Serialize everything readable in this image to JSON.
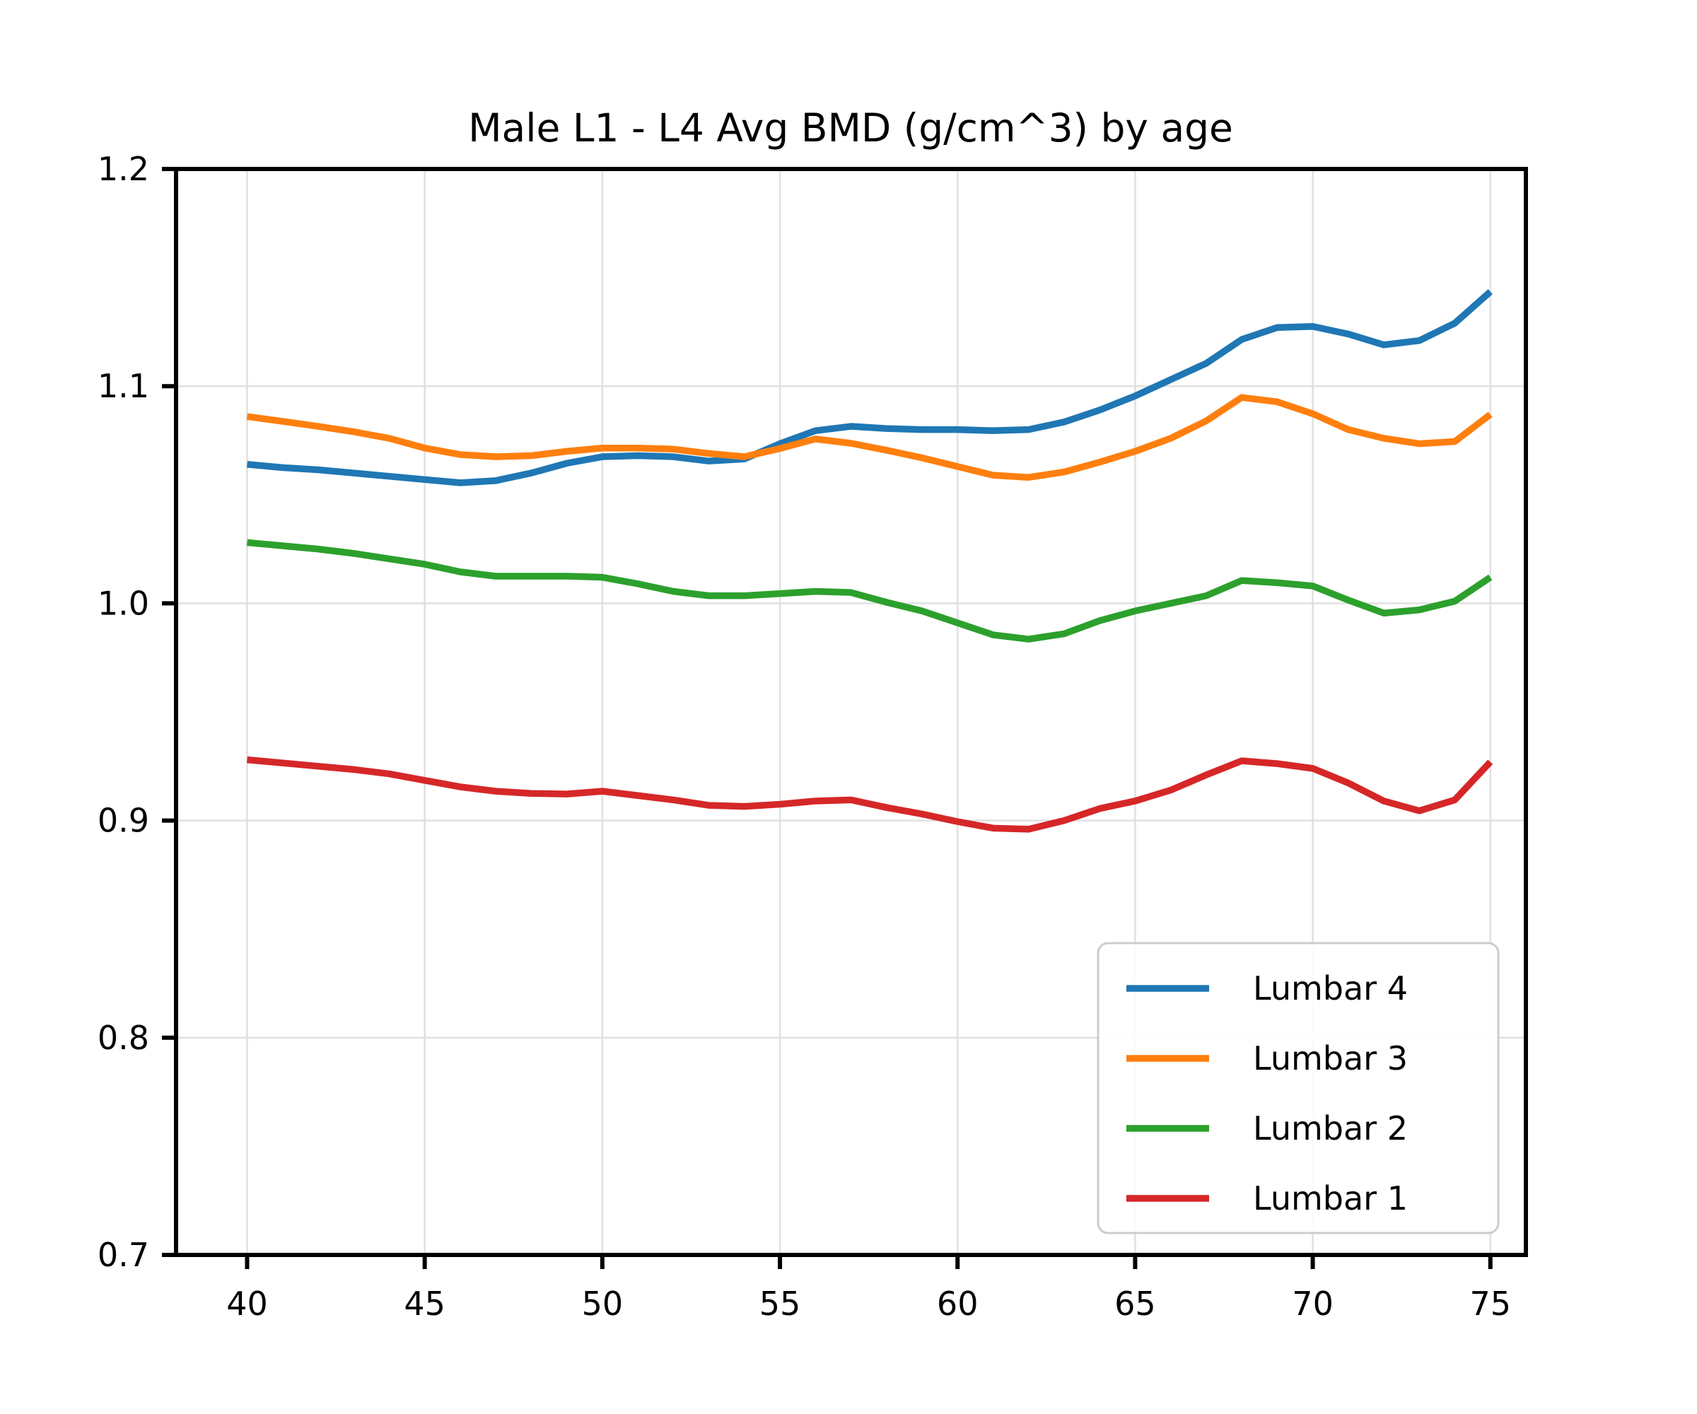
{
  "chart_data": {
    "type": "line",
    "title": "Male L1 - L4 Avg BMD (g/cm^3) by age",
    "xlabel": "",
    "ylabel": "",
    "x": [
      40,
      41,
      42,
      43,
      44,
      45,
      46,
      47,
      48,
      49,
      50,
      51,
      52,
      53,
      54,
      55,
      56,
      57,
      58,
      59,
      60,
      61,
      62,
      63,
      64,
      65,
      66,
      67,
      68,
      69,
      70,
      71,
      72,
      73,
      74,
      75
    ],
    "series": [
      {
        "name": "Lumbar 4",
        "color": "#1f77b4",
        "values": [
          1.064,
          1.0625,
          1.0615,
          1.06,
          1.0585,
          1.057,
          1.0555,
          1.0565,
          1.06,
          1.0645,
          1.0675,
          1.068,
          1.0675,
          1.0655,
          1.0665,
          1.0735,
          1.0795,
          1.0815,
          1.0805,
          1.08,
          1.08,
          1.0795,
          1.08,
          1.0835,
          1.089,
          1.0955,
          1.103,
          1.1105,
          1.1215,
          1.127,
          1.1275,
          1.124,
          1.119,
          1.121,
          1.129,
          1.1435
        ]
      },
      {
        "name": "Lumbar 3",
        "color": "#ff7f0e",
        "values": [
          1.086,
          1.0838,
          1.0815,
          1.079,
          1.076,
          1.0715,
          1.0685,
          1.0675,
          1.068,
          1.07,
          1.0715,
          1.0715,
          1.071,
          1.069,
          1.0675,
          1.0713,
          1.0757,
          1.0737,
          1.0705,
          1.067,
          1.063,
          1.059,
          1.058,
          1.0605,
          1.065,
          1.07,
          1.076,
          1.084,
          1.0948,
          1.0928,
          1.0873,
          1.08,
          1.076,
          1.0735,
          1.0745,
          1.087
        ]
      },
      {
        "name": "Lumbar 2",
        "color": "#2ca02c",
        "values": [
          1.028,
          1.0265,
          1.025,
          1.023,
          1.0205,
          1.018,
          1.0145,
          1.0125,
          1.0125,
          1.0125,
          1.012,
          1.009,
          1.0055,
          1.0035,
          1.0035,
          1.0045,
          1.0055,
          1.005,
          1.0005,
          0.9965,
          0.991,
          0.9855,
          0.9835,
          0.986,
          0.992,
          0.9965,
          1.0,
          1.0035,
          1.0105,
          1.0095,
          1.008,
          1.0015,
          0.9955,
          0.997,
          1.001,
          1.012
        ]
      },
      {
        "name": "Lumbar 1",
        "color": "#d62728",
        "values": [
          0.928,
          0.9265,
          0.925,
          0.9235,
          0.9215,
          0.9185,
          0.9155,
          0.9135,
          0.9125,
          0.9122,
          0.9135,
          0.9115,
          0.9095,
          0.907,
          0.9065,
          0.9075,
          0.909,
          0.9095,
          0.906,
          0.903,
          0.8995,
          0.8965,
          0.896,
          0.9,
          0.9055,
          0.909,
          0.914,
          0.921,
          0.9275,
          0.9262,
          0.924,
          0.9173,
          0.909,
          0.9045,
          0.9095,
          0.927
        ]
      }
    ],
    "xlim": [
      38,
      76
    ],
    "ylim": [
      0.7,
      1.2
    ],
    "x_ticks": [
      40,
      45,
      50,
      55,
      60,
      65,
      70,
      75
    ],
    "y_ticks": [
      0.7,
      0.8,
      0.9,
      1.0,
      1.1,
      1.2
    ],
    "x_tick_labels": [
      "40",
      "45",
      "50",
      "55",
      "60",
      "65",
      "70",
      "75"
    ],
    "y_tick_labels": [
      "0.7",
      "0.8",
      "0.9",
      "1.0",
      "1.1",
      "1.2"
    ],
    "grid": true,
    "grid_color": "#e0e0e0",
    "axis_color": "#000000",
    "background_color": "#ffffff",
    "legend_position": "lower right",
    "legend_labels": [
      "Lumbar 4",
      "Lumbar 3",
      "Lumbar 2",
      "Lumbar 1"
    ]
  }
}
